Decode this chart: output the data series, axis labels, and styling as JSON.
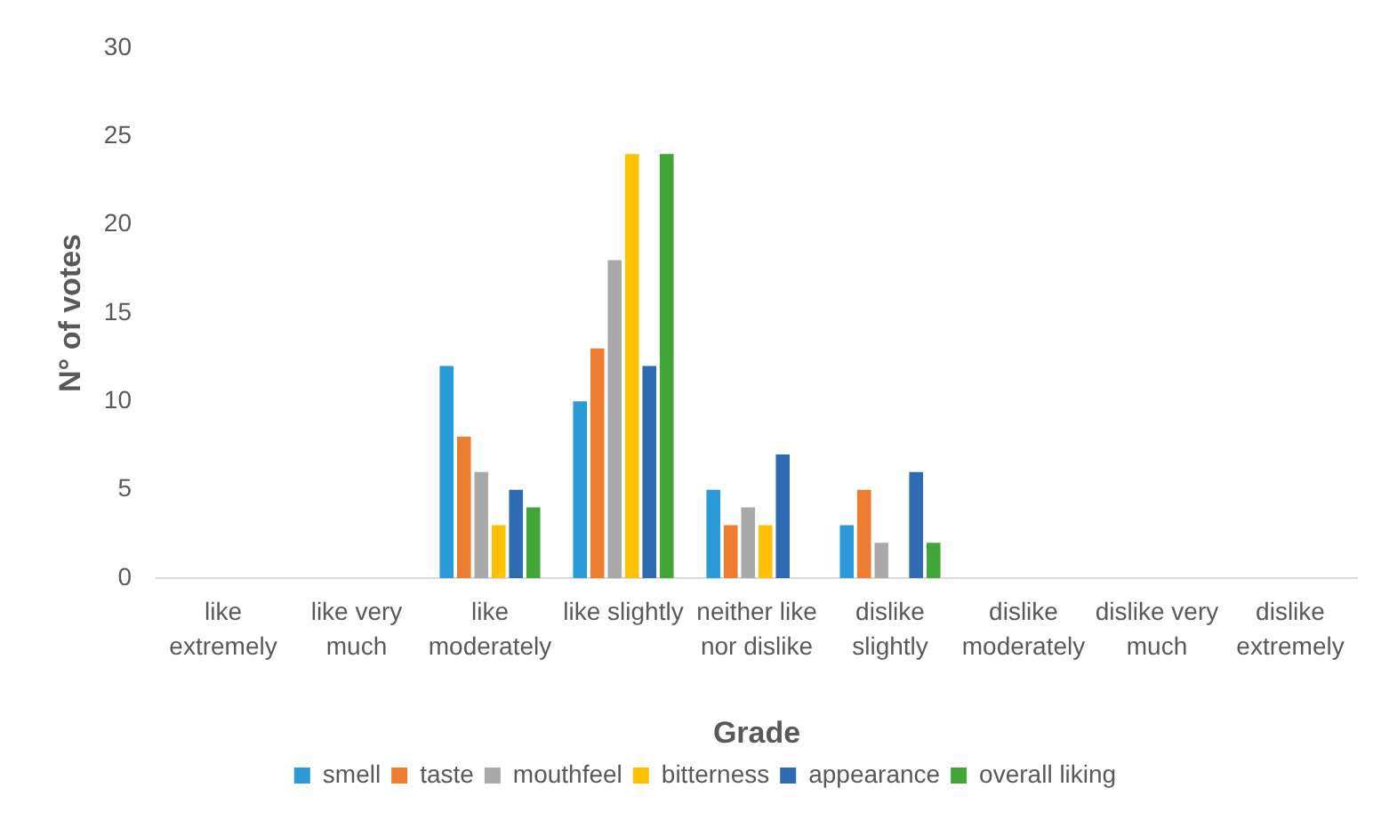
{
  "chart_data": {
    "type": "bar",
    "xlabel": "Grade",
    "ylabel": "N° of votes",
    "categories": [
      "like extremely",
      "like very much",
      "like moderately",
      "like slightly",
      "neither like nor dislike",
      "dislike slightly",
      "dislike moderately",
      "dislike very much",
      "dislike extremely"
    ],
    "series": [
      {
        "name": "smell",
        "color": "#2a9ad8",
        "values": [
          0,
          0,
          12,
          10,
          5,
          3,
          0,
          0,
          0
        ]
      },
      {
        "name": "taste",
        "color": "#ed7d31",
        "values": [
          0,
          0,
          8,
          13,
          3,
          5,
          0,
          0,
          0
        ]
      },
      {
        "name": "mouthfeel",
        "color": "#a9a9a9",
        "values": [
          0,
          0,
          6,
          18,
          4,
          2,
          0,
          0,
          0
        ]
      },
      {
        "name": "bitterness",
        "color": "#ffc000",
        "values": [
          0,
          0,
          3,
          24,
          3,
          0,
          0,
          0,
          0
        ]
      },
      {
        "name": "appearance",
        "color": "#2e6bb2",
        "values": [
          0,
          0,
          5,
          12,
          7,
          6,
          0,
          0,
          0
        ]
      },
      {
        "name": "overall liking",
        "color": "#41a538",
        "values": [
          0,
          0,
          4,
          24,
          0,
          2,
          0,
          0,
          0
        ]
      }
    ],
    "ylim": [
      0,
      30
    ],
    "yticks": [
      0,
      5,
      10,
      15,
      20,
      25,
      30
    ],
    "grid": false,
    "legend": "bottom"
  }
}
